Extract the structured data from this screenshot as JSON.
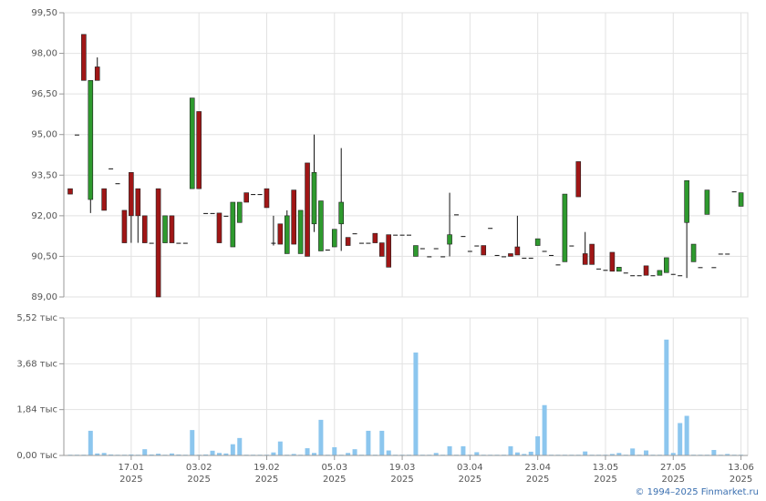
{
  "chart_data": [
    {
      "type": "candlestick",
      "open": [
        93.0,
        95.0,
        98.7,
        92.6,
        97.5,
        93.0,
        93.75,
        93.2,
        92.2,
        93.6,
        93.0,
        92.0,
        91.0,
        93.0,
        91.0,
        92.0,
        91.0,
        91.0,
        93.0,
        95.85,
        92.1,
        92.1,
        92.1,
        92.0,
        90.85,
        91.75,
        92.85,
        92.8,
        92.8,
        93.0,
        91.0,
        91.7,
        90.6,
        92.95,
        90.6,
        93.95,
        91.7,
        90.7,
        90.75,
        90.85,
        91.7,
        91.2,
        91.35,
        91.0,
        91.0,
        91.35,
        91.0,
        91.3,
        91.3,
        91.3,
        91.3,
        90.5,
        90.8,
        90.5,
        90.8,
        90.5,
        90.95,
        92.05,
        91.25,
        90.7,
        90.9,
        90.9,
        91.55,
        90.55,
        90.5,
        90.6,
        90.85,
        90.45,
        90.45,
        90.9,
        90.7,
        90.55,
        90.2,
        90.3,
        90.9,
        94.0,
        90.6,
        90.95,
        90.05,
        90.0,
        90.65,
        89.95,
        89.9,
        89.8,
        89.8,
        90.15,
        89.8,
        89.8,
        89.9,
        89.85,
        89.8,
        91.75,
        90.3,
        90.1,
        92.05,
        90.1,
        90.6,
        90.6,
        92.9,
        92.35
      ],
      "high": [
        93.0,
        95.0,
        98.7,
        97.0,
        97.85,
        93.0,
        93.75,
        93.2,
        92.2,
        93.6,
        93.0,
        92.0,
        91.0,
        93.0,
        92.0,
        92.0,
        91.0,
        91.0,
        96.35,
        95.85,
        92.1,
        92.1,
        92.1,
        92.0,
        92.5,
        92.5,
        92.85,
        92.8,
        92.8,
        93.0,
        92.0,
        91.7,
        92.2,
        92.95,
        92.2,
        93.95,
        95.0,
        92.55,
        90.75,
        91.5,
        94.5,
        91.2,
        91.35,
        91.0,
        91.0,
        91.35,
        91.0,
        91.3,
        91.3,
        91.3,
        91.3,
        90.9,
        90.8,
        90.5,
        90.8,
        90.5,
        92.85,
        92.05,
        91.25,
        90.7,
        90.9,
        90.9,
        91.55,
        90.55,
        90.5,
        90.6,
        92.0,
        90.45,
        90.45,
        91.15,
        90.7,
        90.55,
        90.2,
        92.8,
        90.9,
        94.0,
        91.4,
        90.95,
        90.05,
        90.0,
        90.65,
        90.1,
        89.9,
        89.8,
        89.8,
        90.15,
        89.8,
        89.98,
        90.45,
        89.85,
        89.8,
        93.3,
        90.95,
        90.1,
        92.95,
        90.1,
        90.6,
        90.6,
        92.9,
        92.85
      ],
      "low": [
        92.8,
        95.0,
        97.0,
        92.1,
        97.0,
        92.2,
        93.75,
        93.2,
        91.0,
        91.0,
        91.0,
        91.0,
        91.0,
        89.0,
        91.0,
        91.0,
        91.0,
        91.0,
        93.0,
        93.0,
        92.1,
        92.1,
        91.0,
        92.0,
        90.85,
        91.75,
        92.5,
        92.8,
        92.8,
        92.3,
        90.9,
        90.95,
        90.6,
        90.95,
        90.6,
        90.5,
        91.4,
        90.7,
        90.75,
        90.85,
        90.7,
        90.9,
        91.35,
        91.0,
        91.0,
        91.0,
        90.5,
        90.1,
        91.3,
        91.3,
        91.3,
        90.5,
        90.8,
        90.5,
        90.8,
        90.5,
        90.5,
        92.05,
        91.25,
        90.7,
        90.9,
        90.55,
        91.55,
        90.55,
        90.5,
        90.5,
        90.55,
        90.45,
        90.45,
        90.9,
        90.7,
        90.55,
        90.2,
        90.3,
        90.9,
        92.7,
        90.2,
        90.2,
        90.05,
        90.0,
        89.95,
        89.95,
        89.9,
        89.8,
        89.8,
        89.8,
        89.8,
        89.8,
        89.9,
        89.85,
        89.8,
        89.7,
        90.3,
        90.1,
        92.05,
        90.1,
        90.6,
        90.6,
        92.9,
        92.35
      ],
      "close": [
        92.8,
        95.0,
        97.0,
        97.0,
        97.0,
        92.2,
        93.75,
        93.2,
        91.0,
        92.0,
        92.0,
        91.0,
        91.0,
        89.0,
        92.0,
        91.0,
        91.0,
        91.0,
        96.35,
        93.0,
        92.1,
        92.1,
        91.0,
        92.0,
        92.5,
        92.5,
        92.5,
        92.8,
        92.8,
        92.3,
        91.0,
        90.95,
        92.0,
        90.95,
        92.2,
        90.5,
        93.6,
        92.55,
        90.75,
        91.5,
        92.5,
        90.9,
        91.35,
        91.0,
        91.0,
        91.0,
        90.5,
        90.1,
        91.3,
        91.3,
        91.3,
        90.9,
        90.8,
        90.5,
        90.8,
        90.5,
        91.3,
        92.05,
        91.25,
        90.7,
        90.9,
        90.55,
        91.55,
        90.55,
        90.5,
        90.5,
        90.55,
        90.45,
        90.45,
        91.15,
        90.7,
        90.55,
        90.2,
        92.8,
        90.9,
        92.7,
        90.2,
        90.2,
        90.05,
        90.0,
        89.95,
        90.1,
        89.9,
        89.8,
        89.8,
        89.8,
        89.8,
        89.98,
        90.45,
        89.85,
        89.8,
        93.3,
        90.95,
        90.1,
        92.95,
        90.1,
        90.6,
        90.6,
        92.9,
        92.85
      ],
      "up_color": "#2e9a2e",
      "down_color": "#a01616",
      "ylim": [
        89.0,
        99.5
      ],
      "yticks": [
        {
          "value": 89.0,
          "label": "89,00"
        },
        {
          "value": 90.5,
          "label": "90,50"
        },
        {
          "value": 92.0,
          "label": "92,00"
        },
        {
          "value": 93.5,
          "label": "93,50"
        },
        {
          "value": 95.0,
          "label": "95,00"
        },
        {
          "value": 96.5,
          "label": "96,50"
        },
        {
          "value": 98.0,
          "label": "98,00"
        },
        {
          "value": 99.5,
          "label": "99,50"
        }
      ],
      "grid": true
    },
    {
      "type": "bar",
      "categories": [
        null,
        null,
        null,
        null,
        null,
        null,
        null,
        null,
        null,
        "17.01\n2025",
        null,
        null,
        null,
        null,
        null,
        null,
        null,
        null,
        null,
        "03.02\n2025",
        null,
        null,
        null,
        null,
        null,
        null,
        null,
        null,
        null,
        "19.02\n2025",
        null,
        null,
        null,
        null,
        null,
        null,
        null,
        null,
        null,
        "05.03\n2025",
        null,
        null,
        null,
        null,
        null,
        null,
        null,
        null,
        null,
        "19.03\n2025",
        null,
        null,
        null,
        null,
        null,
        null,
        null,
        null,
        null,
        "03.04\n2025",
        null,
        null,
        null,
        null,
        null,
        null,
        null,
        null,
        null,
        "23.04\n2025",
        null,
        null,
        null,
        null,
        null,
        null,
        null,
        null,
        null,
        "13.05\n2025",
        null,
        null,
        null,
        null,
        null,
        null,
        null,
        null,
        null,
        "27.05\n2025",
        null,
        null,
        null,
        null,
        null,
        null,
        null,
        null,
        null,
        "13.06\n2025"
      ],
      "values": [
        30,
        30,
        30,
        990,
        80,
        100,
        40,
        30,
        30,
        40,
        30,
        250,
        40,
        70,
        30,
        80,
        40,
        30,
        1020,
        30,
        40,
        190,
        100,
        80,
        450,
        700,
        30,
        30,
        30,
        30,
        120,
        560,
        30,
        60,
        30,
        290,
        100,
        1430,
        30,
        330,
        30,
        100,
        250,
        30,
        990,
        30,
        990,
        200,
        30,
        30,
        30,
        4130,
        30,
        30,
        100,
        30,
        370,
        30,
        370,
        30,
        130,
        30,
        30,
        30,
        30,
        370,
        120,
        60,
        150,
        770,
        2020,
        30,
        30,
        30,
        30,
        30,
        160,
        30,
        30,
        30,
        60,
        100,
        30,
        280,
        30,
        200,
        30,
        30,
        4650,
        100,
        1300,
        1590,
        30,
        30,
        30,
        220,
        30,
        60,
        30,
        30
      ],
      "color": "#8cc6ee",
      "ylim": [
        0,
        5520
      ],
      "yticks": [
        {
          "value": 0,
          "label": "0,00 тыс"
        },
        {
          "value": 1840,
          "label": "1,84 тыс"
        },
        {
          "value": 3680,
          "label": "3,68 тыс"
        },
        {
          "value": 5520,
          "label": "5,52 тыс"
        }
      ],
      "grid": true
    }
  ],
  "footer": "© 1994–2025 Finmarket.ru"
}
